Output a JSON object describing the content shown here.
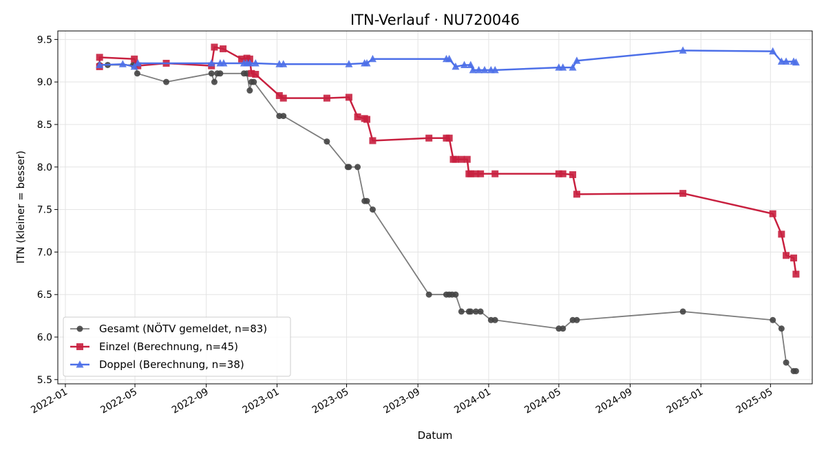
{
  "chart_data": {
    "type": "line",
    "title": "ITN-Verlauf · NU720046",
    "xlabel": "Datum",
    "ylabel": "ITN  (kleiner = besser)",
    "x_scale": "date",
    "xlim": [
      "2021-12-19",
      "2025-07-12"
    ],
    "ylim": [
      5.45,
      9.6
    ],
    "grid": true,
    "legend_position": "lower-left",
    "x_ticks": [
      "2022-01-01",
      "2022-05-01",
      "2022-09-01",
      "2023-01-01",
      "2023-05-01",
      "2023-09-01",
      "2024-01-01",
      "2024-05-01",
      "2024-09-01",
      "2025-01-01",
      "2025-05-01"
    ],
    "x_tick_labels": [
      "2022-01",
      "2022-05",
      "2022-09",
      "2023-01",
      "2023-05",
      "2023-09",
      "2024-01",
      "2024-05",
      "2024-09",
      "2025-01",
      "2025-05"
    ],
    "y_ticks": [
      5.5,
      6.0,
      6.5,
      7.0,
      7.5,
      8.0,
      8.5,
      9.0,
      9.5
    ],
    "y_tick_labels": [
      "5.5",
      "6.0",
      "6.5",
      "7.0",
      "7.5",
      "8.0",
      "8.5",
      "9.0",
      "9.5"
    ],
    "series": [
      {
        "name": "Gesamt (NÖTV gemeldet, n=83)",
        "color": "#444444",
        "marker": "circle",
        "points": [
          [
            "2022-03-01",
            9.2
          ],
          [
            "2022-03-15",
            9.2
          ],
          [
            "2022-04-28",
            9.2
          ],
          [
            "2022-05-02",
            9.2
          ],
          [
            "2022-05-05",
            9.1
          ],
          [
            "2022-06-24",
            9.0
          ],
          [
            "2022-09-10",
            9.1
          ],
          [
            "2022-09-15",
            9.0
          ],
          [
            "2022-09-20",
            9.1
          ],
          [
            "2022-09-25",
            9.1
          ],
          [
            "2022-11-05",
            9.1
          ],
          [
            "2022-11-10",
            9.1
          ],
          [
            "2022-11-15",
            8.9
          ],
          [
            "2022-11-18",
            9.0
          ],
          [
            "2022-11-22",
            9.0
          ],
          [
            "2023-01-05",
            8.6
          ],
          [
            "2023-01-12",
            8.6
          ],
          [
            "2023-03-28",
            8.3
          ],
          [
            "2023-05-03",
            8.0
          ],
          [
            "2023-05-05",
            8.0
          ],
          [
            "2023-05-20",
            8.0
          ],
          [
            "2023-06-01",
            7.6
          ],
          [
            "2023-06-05",
            7.6
          ],
          [
            "2023-06-15",
            7.5
          ],
          [
            "2023-09-20",
            6.5
          ],
          [
            "2023-10-20",
            6.5
          ],
          [
            "2023-10-25",
            6.5
          ],
          [
            "2023-10-30",
            6.5
          ],
          [
            "2023-11-05",
            6.5
          ],
          [
            "2023-11-15",
            6.3
          ],
          [
            "2023-11-28",
            6.3
          ],
          [
            "2023-12-01",
            6.3
          ],
          [
            "2023-12-10",
            6.3
          ],
          [
            "2023-12-18",
            6.3
          ],
          [
            "2024-01-05",
            6.2
          ],
          [
            "2024-01-12",
            6.2
          ],
          [
            "2024-05-01",
            6.1
          ],
          [
            "2024-05-08",
            6.1
          ],
          [
            "2024-05-25",
            6.2
          ],
          [
            "2024-06-01",
            6.2
          ],
          [
            "2024-12-01",
            6.3
          ],
          [
            "2025-05-05",
            6.2
          ],
          [
            "2025-05-20",
            6.1
          ],
          [
            "2025-05-28",
            5.7
          ],
          [
            "2025-06-10",
            5.6
          ],
          [
            "2025-06-14",
            5.6
          ]
        ]
      },
      {
        "name": "Einzel (Berechnung, n=45)",
        "color": "#c8203f",
        "marker": "square",
        "points": [
          [
            "2022-03-01",
            9.18
          ],
          [
            "2022-03-01",
            9.29
          ],
          [
            "2022-04-30",
            9.27
          ],
          [
            "2022-05-06",
            9.19
          ],
          [
            "2022-06-24",
            9.22
          ],
          [
            "2022-09-10",
            9.19
          ],
          [
            "2022-09-15",
            9.41
          ],
          [
            "2022-09-30",
            9.39
          ],
          [
            "2022-11-01",
            9.27
          ],
          [
            "2022-11-10",
            9.28
          ],
          [
            "2022-11-15",
            9.27
          ],
          [
            "2022-11-18",
            9.1
          ],
          [
            "2022-11-25",
            9.09
          ],
          [
            "2023-01-05",
            8.84
          ],
          [
            "2023-01-12",
            8.81
          ],
          [
            "2023-03-28",
            8.81
          ],
          [
            "2023-05-05",
            8.82
          ],
          [
            "2023-05-20",
            8.59
          ],
          [
            "2023-06-01",
            8.57
          ],
          [
            "2023-06-05",
            8.56
          ],
          [
            "2023-06-15",
            8.31
          ],
          [
            "2023-09-20",
            8.34
          ],
          [
            "2023-10-20",
            8.34
          ],
          [
            "2023-10-25",
            8.34
          ],
          [
            "2023-11-01",
            8.09
          ],
          [
            "2023-11-05",
            8.09
          ],
          [
            "2023-11-15",
            8.09
          ],
          [
            "2023-11-25",
            8.09
          ],
          [
            "2023-11-28",
            7.92
          ],
          [
            "2023-12-01",
            7.92
          ],
          [
            "2023-12-10",
            7.92
          ],
          [
            "2023-12-18",
            7.92
          ],
          [
            "2024-01-12",
            7.92
          ],
          [
            "2024-05-01",
            7.92
          ],
          [
            "2024-05-08",
            7.92
          ],
          [
            "2024-05-25",
            7.91
          ],
          [
            "2024-06-01",
            7.68
          ],
          [
            "2024-12-01",
            7.69
          ],
          [
            "2025-05-05",
            7.45
          ],
          [
            "2025-05-20",
            7.21
          ],
          [
            "2025-05-28",
            6.96
          ],
          [
            "2025-06-10",
            6.93
          ],
          [
            "2025-06-14",
            6.74
          ]
        ]
      },
      {
        "name": "Doppel (Berechnung, n=38)",
        "color": "#4c6fe8",
        "marker": "triangle",
        "points": [
          [
            "2022-03-01",
            9.2
          ],
          [
            "2022-04-10",
            9.21
          ],
          [
            "2022-04-30",
            9.18
          ],
          [
            "2022-05-06",
            9.22
          ],
          [
            "2022-09-10",
            9.22
          ],
          [
            "2022-09-25",
            9.22
          ],
          [
            "2022-10-01",
            9.22
          ],
          [
            "2022-11-05",
            9.22
          ],
          [
            "2022-11-10",
            9.22
          ],
          [
            "2022-11-15",
            9.22
          ],
          [
            "2022-11-25",
            9.22
          ],
          [
            "2023-01-05",
            9.21
          ],
          [
            "2023-01-12",
            9.21
          ],
          [
            "2023-05-05",
            9.21
          ],
          [
            "2023-06-01",
            9.22
          ],
          [
            "2023-06-05",
            9.22
          ],
          [
            "2023-06-15",
            9.27
          ],
          [
            "2023-10-20",
            9.27
          ],
          [
            "2023-10-25",
            9.27
          ],
          [
            "2023-11-05",
            9.18
          ],
          [
            "2023-11-20",
            9.2
          ],
          [
            "2023-12-01",
            9.2
          ],
          [
            "2023-12-05",
            9.14
          ],
          [
            "2023-12-15",
            9.14
          ],
          [
            "2023-12-25",
            9.14
          ],
          [
            "2024-01-05",
            9.14
          ],
          [
            "2024-01-12",
            9.14
          ],
          [
            "2024-05-01",
            9.17
          ],
          [
            "2024-05-08",
            9.17
          ],
          [
            "2024-05-25",
            9.17
          ],
          [
            "2024-06-01",
            9.25
          ],
          [
            "2024-12-01",
            9.37
          ],
          [
            "2025-05-05",
            9.36
          ],
          [
            "2025-05-20",
            9.24
          ],
          [
            "2025-05-28",
            9.24
          ],
          [
            "2025-06-10",
            9.24
          ],
          [
            "2025-06-14",
            9.23
          ]
        ]
      }
    ]
  }
}
